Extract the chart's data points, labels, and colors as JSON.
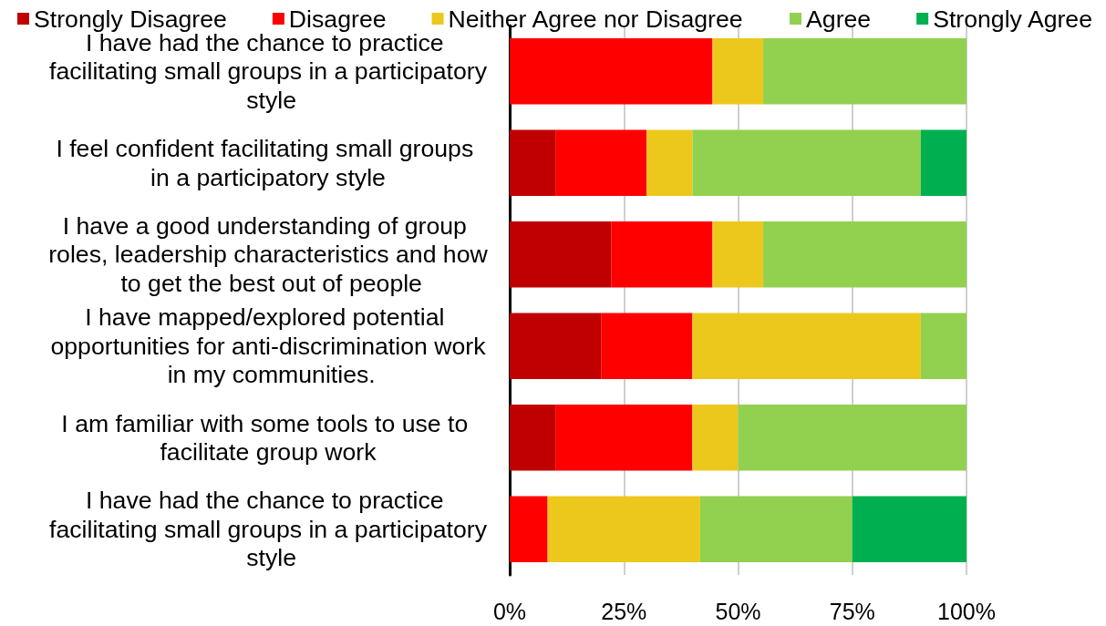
{
  "chart_data": {
    "type": "bar",
    "orientation": "horizontal",
    "stacked": true,
    "categories": [
      "I have had the chance to practice facilitating small groups in a participatory style",
      "I feel confident facilitating small groups in a participatory style",
      "I have a good understanding of group roles, leadership characteristics and how to get the best out of people",
      "I have mapped/explored potential opportunities for anti-discrimination work in my communities.",
      "I am familiar with some tools to use to facilitate group work",
      "I have had the chance to practice facilitating small groups in a participatory style"
    ],
    "series": [
      {
        "name": "Strongly Disagree",
        "color": "#c00000",
        "values": [
          0,
          10,
          22.2,
          20,
          10,
          0
        ]
      },
      {
        "name": "Disagree",
        "color": "#ff0000",
        "values": [
          44.4,
          20,
          22.2,
          20,
          30,
          8.3
        ]
      },
      {
        "name": "Neither Agree nor Disagree",
        "color": "#ecc81c",
        "values": [
          11.1,
          10,
          11.1,
          50,
          10,
          33.4
        ]
      },
      {
        "name": "Agree",
        "color": "#92d050",
        "values": [
          44.5,
          50,
          44.5,
          10,
          50,
          33.3
        ]
      },
      {
        "name": "Strongly Agree",
        "color": "#00b050",
        "values": [
          0,
          10,
          0,
          0,
          0,
          25
        ]
      }
    ],
    "xlim": [
      0,
      100
    ],
    "xticks": [
      {
        "value": 0,
        "label": "0%"
      },
      {
        "value": 25,
        "label": "25%"
      },
      {
        "value": 50,
        "label": "50%"
      },
      {
        "value": 75,
        "label": "75%"
      },
      {
        "value": 100,
        "label": "100%"
      }
    ],
    "grid": "x",
    "legend": "top"
  }
}
